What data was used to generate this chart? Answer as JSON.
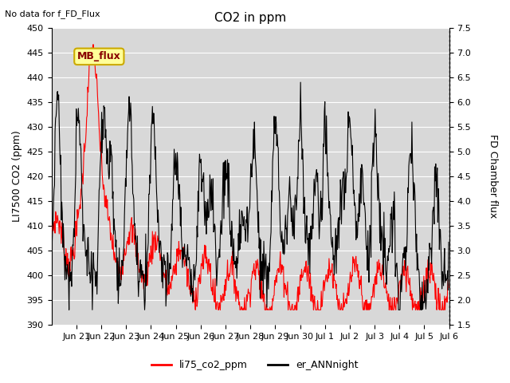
{
  "title": "CO2 in ppm",
  "top_left_text": "No data for f_FD_Flux",
  "ylabel_left": "LI7500 CO2 (ppm)",
  "ylabel_right": "FD Chamber flux",
  "ylim_left": [
    390,
    450
  ],
  "ylim_right": [
    1.5,
    7.5
  ],
  "yticks_left": [
    390,
    395,
    400,
    405,
    410,
    415,
    420,
    425,
    430,
    435,
    440,
    445,
    450
  ],
  "yticks_right": [
    1.5,
    2.0,
    2.5,
    3.0,
    3.5,
    4.0,
    4.5,
    5.0,
    5.5,
    6.0,
    6.5,
    7.0,
    7.5
  ],
  "legend_entries": [
    "li75_co2_ppm",
    "er_ANNnight"
  ],
  "line1_color": "#ff0000",
  "line2_color": "#000000",
  "mb_flux_box_facecolor": "#ffff99",
  "mb_flux_box_edgecolor": "#ccaa00",
  "plot_bg_color": "#d8d8d8",
  "grid_color": "#ffffff",
  "x_tick_labels": [
    "Jun 21",
    "Jun 22",
    "Jun 23",
    "Jun 24",
    "Jun 25",
    "Jun 26",
    "Jun 27",
    "Jun 28",
    "Jun 29",
    "Jun 30",
    "Jul 1",
    "Jul 2",
    "Jul 3",
    "Jul 4",
    "Jul 5",
    "Jul 6"
  ],
  "title_fontsize": 11,
  "label_fontsize": 9,
  "tick_fontsize": 8,
  "figsize": [
    6.4,
    4.8
  ],
  "dpi": 100
}
